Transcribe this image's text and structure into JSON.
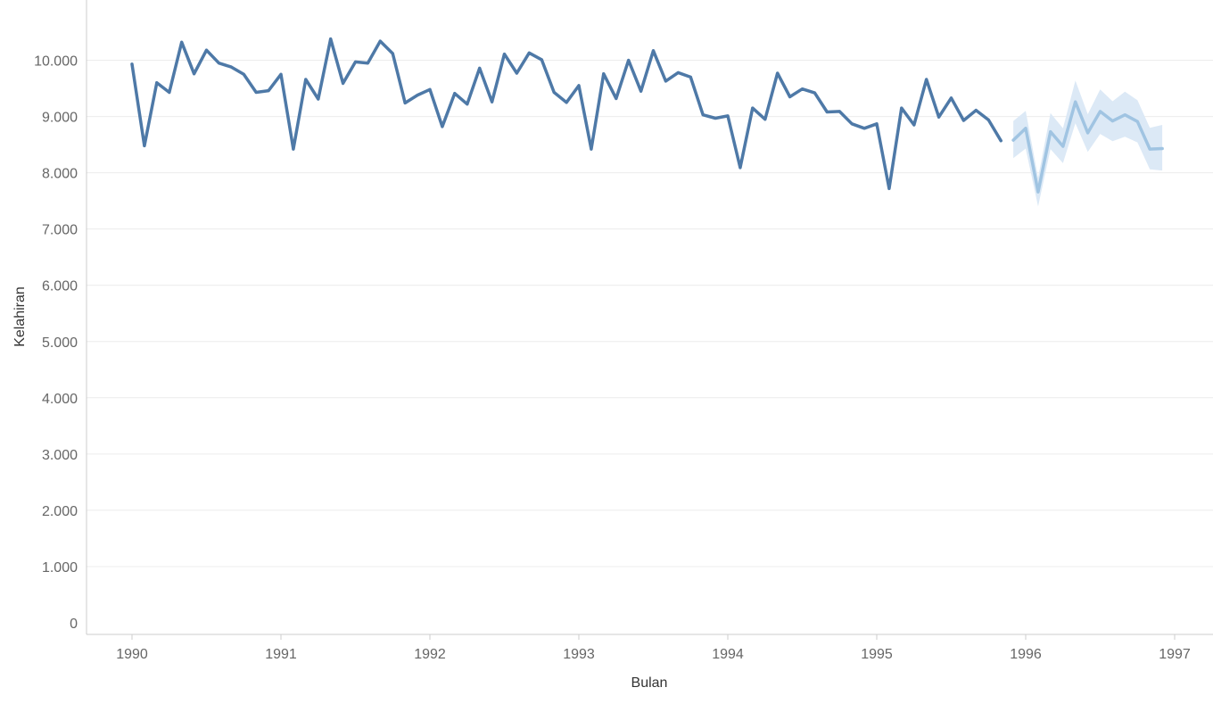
{
  "chart_data": {
    "type": "line",
    "xlabel": "Bulan",
    "ylabel": "Kelahiran",
    "x_ticks": [
      "1990",
      "1991",
      "1992",
      "1993",
      "1994",
      "1995",
      "1996",
      "1997"
    ],
    "y_ticks": [
      "0",
      "1.000",
      "2.000",
      "3.000",
      "4.000",
      "5.000",
      "6.000",
      "7.000",
      "8.000",
      "9.000",
      "10.000"
    ],
    "xlim": [
      "1989-10",
      "1997-02"
    ],
    "ylim": [
      0,
      10500
    ],
    "grid": true,
    "colors": {
      "actual": "#4e79a7",
      "forecast": "#a0c4e2",
      "band": "#dce9f6"
    },
    "series": [
      {
        "role": "actual",
        "start": "1990-01",
        "values": [
          9930,
          8480,
          9600,
          9430,
          10320,
          9760,
          10180,
          9950,
          9880,
          9750,
          9430,
          9460,
          9750,
          8420,
          9660,
          9310,
          10380,
          9590,
          9970,
          9950,
          10340,
          10120,
          9240,
          9380,
          9480,
          8820,
          9410,
          9220,
          9860,
          9260,
          10110,
          9770,
          10130,
          10010,
          9430,
          9250,
          9550,
          8420,
          9760,
          9320,
          10000,
          9450,
          10170,
          9630,
          9780,
          9700,
          9030,
          8970,
          9010,
          8090,
          9150,
          8950,
          9770,
          9350,
          9490,
          9420,
          9080,
          9090,
          8870,
          8790,
          8870,
          7720,
          9150,
          8850,
          9660,
          8990,
          9330,
          8930,
          9110,
          8940,
          8570
        ]
      },
      {
        "role": "forecast",
        "start": "1995-12",
        "values": [
          8580,
          8790,
          7660,
          8730,
          8470,
          9260,
          8710,
          9090,
          8920,
          9030,
          8910,
          8420,
          8430
        ],
        "lower": [
          8260,
          8430,
          7400,
          8420,
          8170,
          8880,
          8370,
          8690,
          8560,
          8640,
          8540,
          8060,
          8040
        ],
        "upper": [
          8920,
          9100,
          7910,
          9060,
          8790,
          9640,
          9040,
          9480,
          9270,
          9440,
          9290,
          8800,
          8850
        ]
      }
    ]
  }
}
